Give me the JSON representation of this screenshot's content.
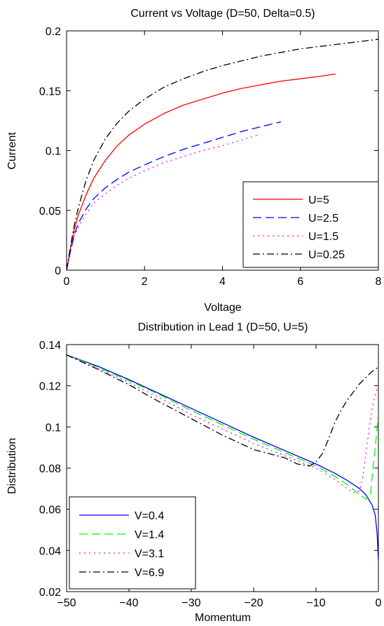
{
  "chart_data": [
    {
      "type": "line",
      "title": "Current vs Voltage (D=50, Delta=0.5)",
      "xlabel": "Voltage",
      "ylabel": "Current",
      "xlim": [
        0,
        8
      ],
      "ylim": [
        0,
        0.2
      ],
      "xticks": [
        0,
        2,
        4,
        6,
        8
      ],
      "yticks": [
        0,
        0.05,
        0.1,
        0.15,
        0.2
      ],
      "xtick_labels": [
        "0",
        "2",
        "4",
        "6",
        "8"
      ],
      "ytick_labels": [
        "0",
        "0.05",
        "0.1",
        "0.15",
        "0.2"
      ],
      "grid": false,
      "legend_position": "bottom-right",
      "series": [
        {
          "name": "U=5",
          "color": "#ff0000",
          "dash": "solid",
          "x": [
            0,
            0.1,
            0.2,
            0.3,
            0.5,
            0.7,
            1.0,
            1.3,
            1.6,
            2.0,
            2.5,
            3.0,
            3.5,
            4.0,
            4.5,
            5.0,
            5.5,
            6.0,
            6.5,
            6.9
          ],
          "y": [
            0,
            0.018,
            0.034,
            0.046,
            0.063,
            0.077,
            0.092,
            0.104,
            0.113,
            0.122,
            0.131,
            0.138,
            0.143,
            0.148,
            0.152,
            0.155,
            0.158,
            0.16,
            0.162,
            0.164
          ]
        },
        {
          "name": "U=2.5",
          "color": "#0000ff",
          "dash": "long-dash",
          "x": [
            0,
            0.1,
            0.2,
            0.3,
            0.5,
            0.7,
            1.0,
            1.3,
            1.6,
            2.0,
            2.5,
            3.0,
            3.5,
            4.0,
            4.5,
            5.0,
            5.5
          ],
          "y": [
            0,
            0.016,
            0.03,
            0.039,
            0.051,
            0.06,
            0.069,
            0.076,
            0.082,
            0.088,
            0.095,
            0.101,
            0.106,
            0.111,
            0.116,
            0.12,
            0.124
          ]
        },
        {
          "name": "U=1.5",
          "color": "#ff00ff",
          "dash": "dotted",
          "x": [
            0,
            0.1,
            0.2,
            0.3,
            0.5,
            0.7,
            1.0,
            1.3,
            1.6,
            2.0,
            2.5,
            3.0,
            3.5,
            4.0,
            4.5,
            4.9
          ],
          "y": [
            0,
            0.015,
            0.028,
            0.036,
            0.047,
            0.056,
            0.064,
            0.071,
            0.077,
            0.083,
            0.09,
            0.095,
            0.1,
            0.104,
            0.109,
            0.113
          ]
        },
        {
          "name": "U=0.25",
          "color": "#000000",
          "dash": "dash-dot",
          "x": [
            0,
            0.1,
            0.2,
            0.3,
            0.5,
            0.7,
            1.0,
            1.3,
            1.6,
            2.0,
            2.5,
            3.0,
            3.5,
            4.0,
            4.5,
            5.0,
            5.5,
            6.0,
            6.5,
            7.0,
            7.5,
            8.0
          ],
          "y": [
            0,
            0.02,
            0.038,
            0.052,
            0.075,
            0.092,
            0.11,
            0.123,
            0.133,
            0.143,
            0.153,
            0.16,
            0.166,
            0.171,
            0.175,
            0.179,
            0.182,
            0.185,
            0.187,
            0.189,
            0.191,
            0.193
          ]
        }
      ]
    },
    {
      "type": "line",
      "title": "Distribution in Lead 1 (D=50, U=5)",
      "xlabel": "Momentum",
      "ylabel": "Distribution",
      "xlim": [
        -50,
        0
      ],
      "ylim": [
        0.02,
        0.14
      ],
      "xticks": [
        -50,
        -40,
        -30,
        -20,
        -10,
        0
      ],
      "yticks": [
        0.02,
        0.04,
        0.06,
        0.08,
        0.1,
        0.12,
        0.14
      ],
      "xtick_labels": [
        "−50",
        "−40",
        "−30",
        "−20",
        "−10",
        "0"
      ],
      "ytick_labels": [
        "0.02",
        "0.04",
        "0.06",
        "0.08",
        "0.1",
        "0.12",
        "0.14"
      ],
      "grid": false,
      "legend_position": "bottom-left",
      "series": [
        {
          "name": "V=0.4",
          "color": "#0000ff",
          "dash": "solid",
          "x": [
            -50,
            -45,
            -40,
            -35,
            -30,
            -25,
            -20,
            -15,
            -10,
            -7,
            -5,
            -3,
            -2,
            -1,
            -0.5,
            -0.2,
            0
          ],
          "y": [
            0.135,
            0.1295,
            0.123,
            0.116,
            0.109,
            0.102,
            0.095,
            0.0885,
            0.082,
            0.0775,
            0.074,
            0.07,
            0.067,
            0.062,
            0.057,
            0.048,
            0.035
          ]
        },
        {
          "name": "V=1.4",
          "color": "#00ff00",
          "dash": "long-dash",
          "x": [
            -50,
            -45,
            -40,
            -35,
            -30,
            -25,
            -20,
            -15,
            -10,
            -7,
            -5,
            -3,
            -2,
            -1.3,
            -1,
            -0.5,
            0
          ],
          "y": [
            0.135,
            0.129,
            0.1225,
            0.1155,
            0.108,
            0.101,
            0.094,
            0.0875,
            0.081,
            0.076,
            0.072,
            0.067,
            0.065,
            0.066,
            0.076,
            0.09,
            0.107
          ]
        },
        {
          "name": "V=3.1",
          "color": "#ff00ff",
          "dash": "dotted",
          "x": [
            -50,
            -45,
            -40,
            -35,
            -30,
            -25,
            -20,
            -15,
            -10,
            -7,
            -5,
            -4,
            -3,
            -2.5,
            -2,
            -1.5,
            -1,
            -0.5,
            0
          ],
          "y": [
            0.135,
            0.1285,
            0.1215,
            0.114,
            0.106,
            0.099,
            0.092,
            0.086,
            0.08,
            0.0745,
            0.07,
            0.068,
            0.069,
            0.076,
            0.087,
            0.099,
            0.109,
            0.116,
            0.12
          ]
        },
        {
          "name": "V=6.9",
          "color": "#000000",
          "dash": "dash-dot",
          "x": [
            -50,
            -45,
            -40,
            -35,
            -30,
            -25,
            -20,
            -15,
            -13,
            -11,
            -10,
            -9,
            -8,
            -7,
            -6,
            -5,
            -4,
            -3,
            -2,
            -1,
            0
          ],
          "y": [
            0.135,
            0.128,
            0.1205,
            0.112,
            0.104,
            0.096,
            0.089,
            0.085,
            0.082,
            0.081,
            0.083,
            0.087,
            0.094,
            0.102,
            0.108,
            0.113,
            0.117,
            0.121,
            0.124,
            0.127,
            0.129
          ]
        }
      ]
    }
  ]
}
